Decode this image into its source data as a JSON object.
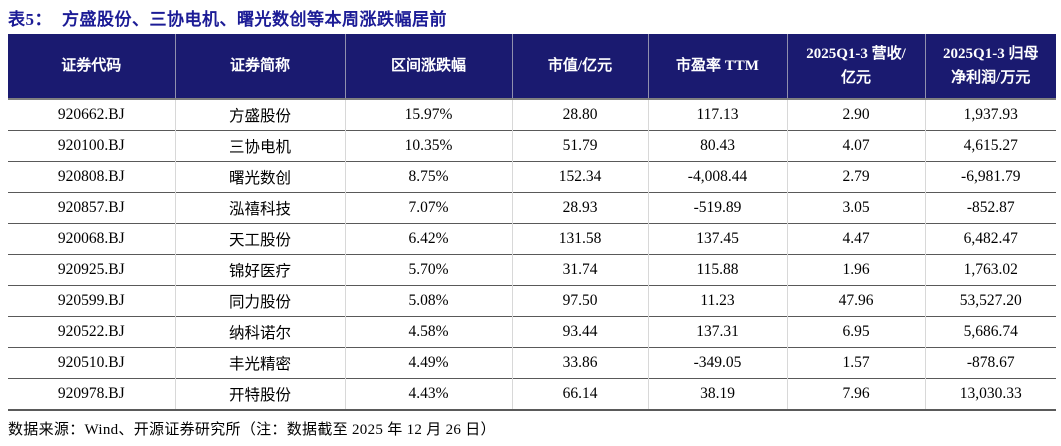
{
  "title": {
    "label": "表5：",
    "text": "方盛股份、三协电机、曙光数创等本周涨跌幅居前"
  },
  "table": {
    "columns": [
      {
        "label": "证券代码"
      },
      {
        "label": "证券简称"
      },
      {
        "label": "区间涨跌幅"
      },
      {
        "label": "市值/亿元"
      },
      {
        "label": "市盈率 TTM"
      },
      {
        "label": "2025Q1-3 营收/亿元",
        "line1": "2025Q1-3 营收/",
        "line2": "亿元"
      },
      {
        "label": "2025Q1-3 归母净利润/万元",
        "line1": "2025Q1-3 归母",
        "line2": "净利润/万元"
      }
    ],
    "rows": [
      [
        "920662.BJ",
        "方盛股份",
        "15.97%",
        "28.80",
        "117.13",
        "2.90",
        "1,937.93"
      ],
      [
        "920100.BJ",
        "三协电机",
        "10.35%",
        "51.79",
        "80.43",
        "4.07",
        "4,615.27"
      ],
      [
        "920808.BJ",
        "曙光数创",
        "8.75%",
        "152.34",
        "-4,008.44",
        "2.79",
        "-6,981.79"
      ],
      [
        "920857.BJ",
        "泓禧科技",
        "7.07%",
        "28.93",
        "-519.89",
        "3.05",
        "-852.87"
      ],
      [
        "920068.BJ",
        "天工股份",
        "6.42%",
        "131.58",
        "137.45",
        "4.47",
        "6,482.47"
      ],
      [
        "920925.BJ",
        "锦好医疗",
        "5.70%",
        "31.74",
        "115.88",
        "1.96",
        "1,763.02"
      ],
      [
        "920599.BJ",
        "同力股份",
        "5.08%",
        "97.50",
        "11.23",
        "47.96",
        "53,527.20"
      ],
      [
        "920522.BJ",
        "纳科诺尔",
        "4.58%",
        "93.44",
        "137.31",
        "6.95",
        "5,686.74"
      ],
      [
        "920510.BJ",
        "丰光精密",
        "4.49%",
        "33.86",
        "-349.05",
        "1.57",
        "-878.67"
      ],
      [
        "920978.BJ",
        "开特股份",
        "4.43%",
        "66.14",
        "38.19",
        "7.96",
        "13,030.33"
      ]
    ]
  },
  "footer": {
    "source": "数据来源：Wind、开源证券研究所（注：数据截至 2025 年 12 月 26 日）"
  },
  "colors": {
    "title_text": "#1c1c96",
    "header_bg": "#1a1a70",
    "header_text": "#ffffff",
    "row_border": "#595959",
    "column_separator": "#d8d8d8",
    "header_separator": "#8f8fae"
  }
}
